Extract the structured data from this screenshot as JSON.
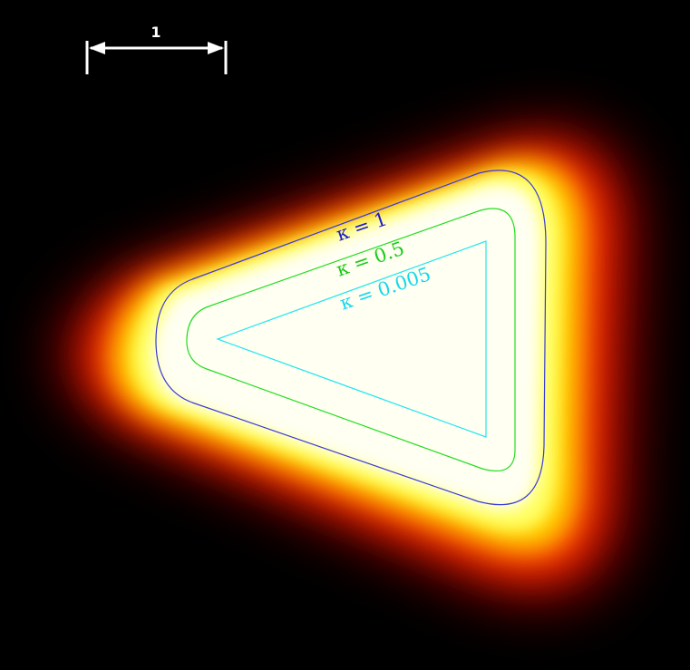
{
  "scale_bar": {
    "label": "1"
  },
  "contours": [
    {
      "id": "kappa-1",
      "label": "κ = 1",
      "color": "#3a3ad6",
      "text_color": "#1a1ad0"
    },
    {
      "id": "kappa-0.5",
      "label": "κ = 0.5",
      "color": "#22dd22",
      "text_color": "#18cc18"
    },
    {
      "id": "kappa-0.005",
      "label": "κ = 0.005",
      "color": "#22e6f0",
      "text_color": "#14d8ee"
    }
  ],
  "colormap": {
    "name": "hot",
    "stops": [
      "#000000",
      "#cc0000",
      "#ff3000",
      "#ffa000",
      "#ffff20",
      "#ffffd8",
      "#fffff6"
    ]
  }
}
